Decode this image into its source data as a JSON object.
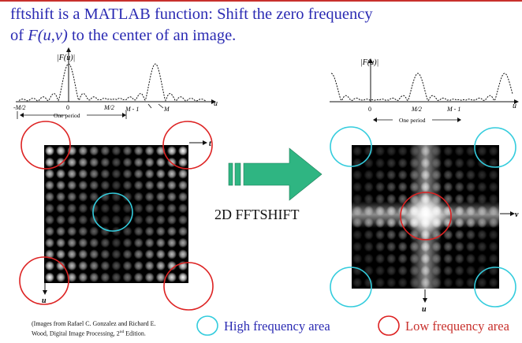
{
  "slide": {
    "title_line1": "fftshift is a MATLAB function:  Shift the zero frequency",
    "title_line2_prefix": "of ",
    "title_line2_func": "F(u,v)",
    "title_line2_suffix": " to the center of an image.",
    "arrow_label": "2D FFTSHIFT",
    "credit_line1": "(Images from Rafael C. Gonzalez and Richard E.",
    "credit_line2": "Wood, Digital Image Processing, 2",
    "credit_sup": "nd",
    "credit_line2_end": " Edition.",
    "legend": {
      "high_label": "High frequency area",
      "low_label": "Low frequency area",
      "high_color": "#33ccdd",
      "low_color": "#dd2222"
    }
  },
  "left_plot": {
    "ylabel": "|F(u)|",
    "xlabel": "u",
    "ticks": [
      "-M/2",
      "0",
      "M/2",
      "M - 1",
      "M"
    ],
    "period_label": "One period"
  },
  "right_plot": {
    "ylabel": "|F(u)|",
    "xlabel": "u",
    "ticks": [
      "0",
      "M/2",
      "M - 1"
    ],
    "period_label": "One period"
  },
  "left_image": {
    "axis_right": "t",
    "axis_down": "u"
  },
  "right_image": {
    "axis_right": "v",
    "axis_down": "u"
  },
  "colors": {
    "title": "#2b2bb3",
    "arrow": "#2fb582",
    "accent_red": "#c8302c"
  }
}
